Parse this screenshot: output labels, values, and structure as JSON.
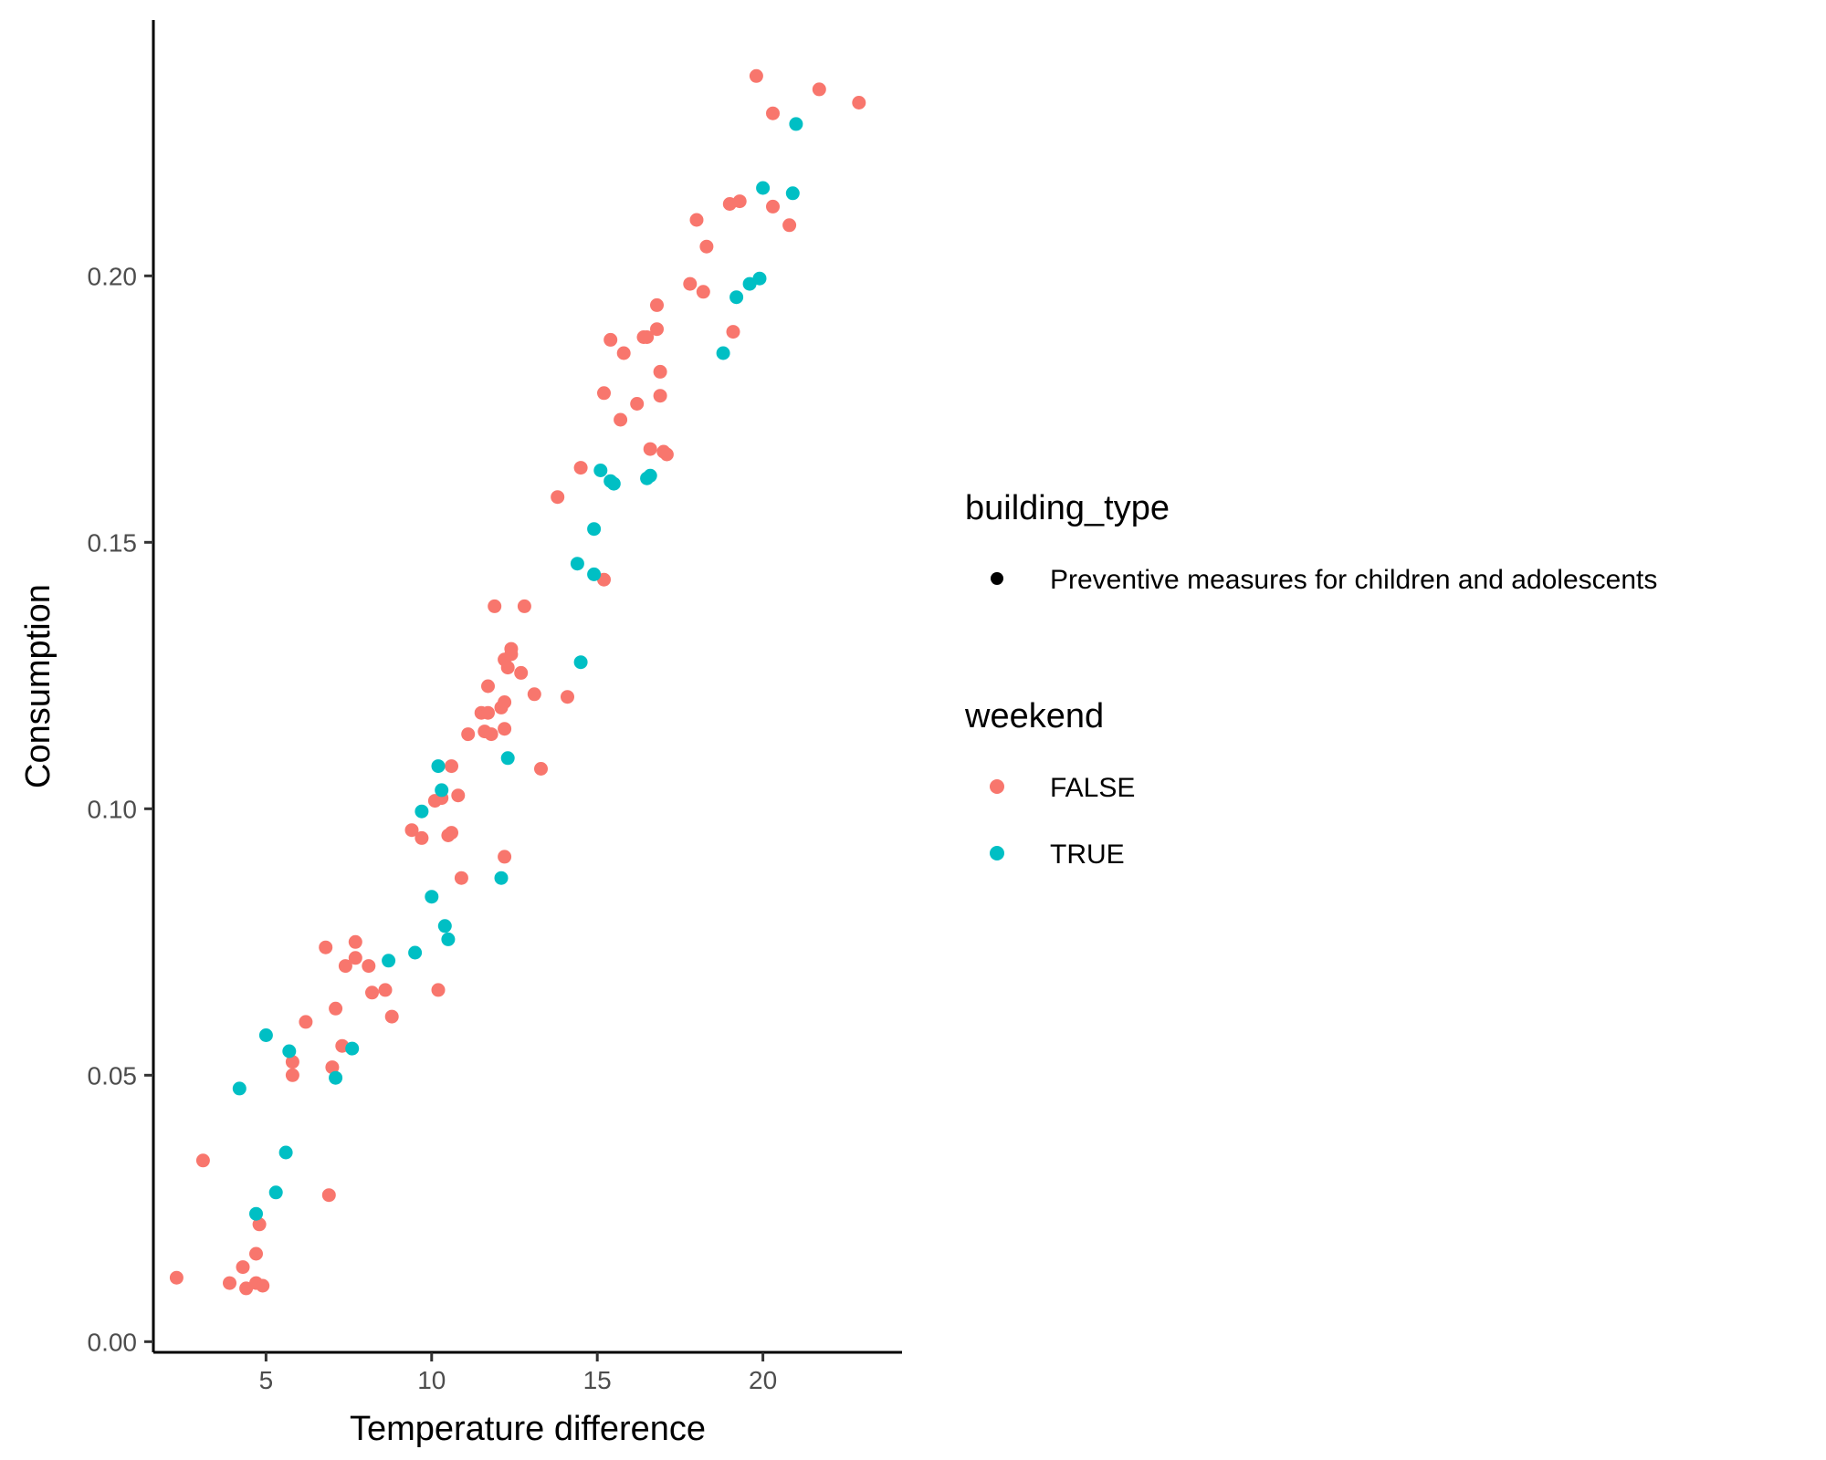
{
  "chart_data": {
    "type": "scatter",
    "xlabel": "Temperature difference",
    "ylabel": "Consumption",
    "xlim": [
      1.6,
      24.2
    ],
    "ylim": [
      -0.002,
      0.248
    ],
    "x_ticks": [
      5,
      10,
      15,
      20
    ],
    "y_ticks": [
      0.0,
      0.05,
      0.1,
      0.15,
      0.2
    ],
    "x_tick_labels": [
      "5",
      "10",
      "15",
      "20"
    ],
    "y_tick_labels": [
      "0.00",
      "0.05",
      "0.10",
      "0.15",
      "0.20"
    ],
    "grid": false,
    "legend_position": "right",
    "legends": [
      {
        "title": "building_type",
        "entries": [
          {
            "label": "Preventive measures for children and adolescents",
            "color": "#000000"
          }
        ]
      },
      {
        "title": "weekend",
        "entries": [
          {
            "label": "FALSE",
            "color": "#F8766D"
          },
          {
            "label": "TRUE",
            "color": "#00BFC4"
          }
        ]
      }
    ],
    "series": [
      {
        "name": "FALSE",
        "color": "#F8766D",
        "points": [
          [
            2.3,
            0.012
          ],
          [
            3.1,
            0.034
          ],
          [
            3.9,
            0.011
          ],
          [
            4.3,
            0.014
          ],
          [
            4.4,
            0.01
          ],
          [
            4.7,
            0.011
          ],
          [
            4.9,
            0.0105
          ],
          [
            4.8,
            0.022
          ],
          [
            4.7,
            0.0165
          ],
          [
            5.8,
            0.0525
          ],
          [
            5.8,
            0.05
          ],
          [
            6.2,
            0.06
          ],
          [
            6.8,
            0.074
          ],
          [
            6.9,
            0.0275
          ],
          [
            7.0,
            0.0515
          ],
          [
            7.1,
            0.0625
          ],
          [
            7.3,
            0.0555
          ],
          [
            7.4,
            0.0705
          ],
          [
            7.7,
            0.075
          ],
          [
            7.7,
            0.072
          ],
          [
            8.1,
            0.0705
          ],
          [
            8.2,
            0.0655
          ],
          [
            8.6,
            0.066
          ],
          [
            8.8,
            0.061
          ],
          [
            9.4,
            0.096
          ],
          [
            9.7,
            0.0945
          ],
          [
            10.1,
            0.1015
          ],
          [
            10.2,
            0.066
          ],
          [
            10.3,
            0.102
          ],
          [
            10.5,
            0.095
          ],
          [
            10.6,
            0.0955
          ],
          [
            10.6,
            0.108
          ],
          [
            10.8,
            0.1025
          ],
          [
            10.9,
            0.087
          ],
          [
            11.1,
            0.114
          ],
          [
            11.5,
            0.118
          ],
          [
            11.6,
            0.1145
          ],
          [
            11.7,
            0.123
          ],
          [
            11.7,
            0.118
          ],
          [
            11.8,
            0.114
          ],
          [
            11.9,
            0.138
          ],
          [
            12.1,
            0.119
          ],
          [
            12.2,
            0.128
          ],
          [
            12.2,
            0.12
          ],
          [
            12.2,
            0.115
          ],
          [
            12.2,
            0.091
          ],
          [
            12.3,
            0.1265
          ],
          [
            12.4,
            0.129
          ],
          [
            12.4,
            0.13
          ],
          [
            12.7,
            0.1255
          ],
          [
            12.8,
            0.138
          ],
          [
            13.1,
            0.1215
          ],
          [
            13.3,
            0.1075
          ],
          [
            13.8,
            0.1585
          ],
          [
            14.1,
            0.121
          ],
          [
            14.5,
            0.164
          ],
          [
            15.2,
            0.143
          ],
          [
            15.2,
            0.178
          ],
          [
            15.4,
            0.188
          ],
          [
            15.7,
            0.173
          ],
          [
            15.8,
            0.1855
          ],
          [
            16.2,
            0.176
          ],
          [
            16.4,
            0.1885
          ],
          [
            16.5,
            0.1885
          ],
          [
            16.6,
            0.1675
          ],
          [
            16.8,
            0.19
          ],
          [
            16.8,
            0.1945
          ],
          [
            16.9,
            0.182
          ],
          [
            16.9,
            0.1775
          ],
          [
            17.0,
            0.167
          ],
          [
            17.1,
            0.1665
          ],
          [
            17.8,
            0.1985
          ],
          [
            18.0,
            0.2105
          ],
          [
            18.2,
            0.197
          ],
          [
            18.3,
            0.2055
          ],
          [
            19.0,
            0.2135
          ],
          [
            19.1,
            0.1895
          ],
          [
            19.3,
            0.214
          ],
          [
            19.8,
            0.2375
          ],
          [
            20.3,
            0.2305
          ],
          [
            20.3,
            0.213
          ],
          [
            20.8,
            0.2095
          ],
          [
            21.7,
            0.235
          ],
          [
            22.9,
            0.2325
          ]
        ]
      },
      {
        "name": "TRUE",
        "color": "#00BFC4",
        "points": [
          [
            4.2,
            0.0475
          ],
          [
            4.7,
            0.024
          ],
          [
            5.0,
            0.0575
          ],
          [
            5.3,
            0.028
          ],
          [
            5.6,
            0.0355
          ],
          [
            5.7,
            0.0545
          ],
          [
            7.1,
            0.0495
          ],
          [
            7.6,
            0.055
          ],
          [
            8.7,
            0.0715
          ],
          [
            9.5,
            0.073
          ],
          [
            9.7,
            0.0995
          ],
          [
            10.0,
            0.0835
          ],
          [
            10.2,
            0.108
          ],
          [
            10.3,
            0.1035
          ],
          [
            10.4,
            0.078
          ],
          [
            10.5,
            0.0755
          ],
          [
            12.1,
            0.087
          ],
          [
            12.3,
            0.1095
          ],
          [
            14.4,
            0.146
          ],
          [
            14.5,
            0.1275
          ],
          [
            14.9,
            0.1525
          ],
          [
            14.9,
            0.144
          ],
          [
            15.1,
            0.1635
          ],
          [
            15.4,
            0.1615
          ],
          [
            15.5,
            0.161
          ],
          [
            16.5,
            0.162
          ],
          [
            16.6,
            0.1625
          ],
          [
            18.8,
            0.1855
          ],
          [
            19.2,
            0.196
          ],
          [
            19.6,
            0.1985
          ],
          [
            19.9,
            0.1995
          ],
          [
            20.0,
            0.2165
          ],
          [
            20.9,
            0.2155
          ],
          [
            21.0,
            0.2285
          ]
        ]
      }
    ]
  }
}
